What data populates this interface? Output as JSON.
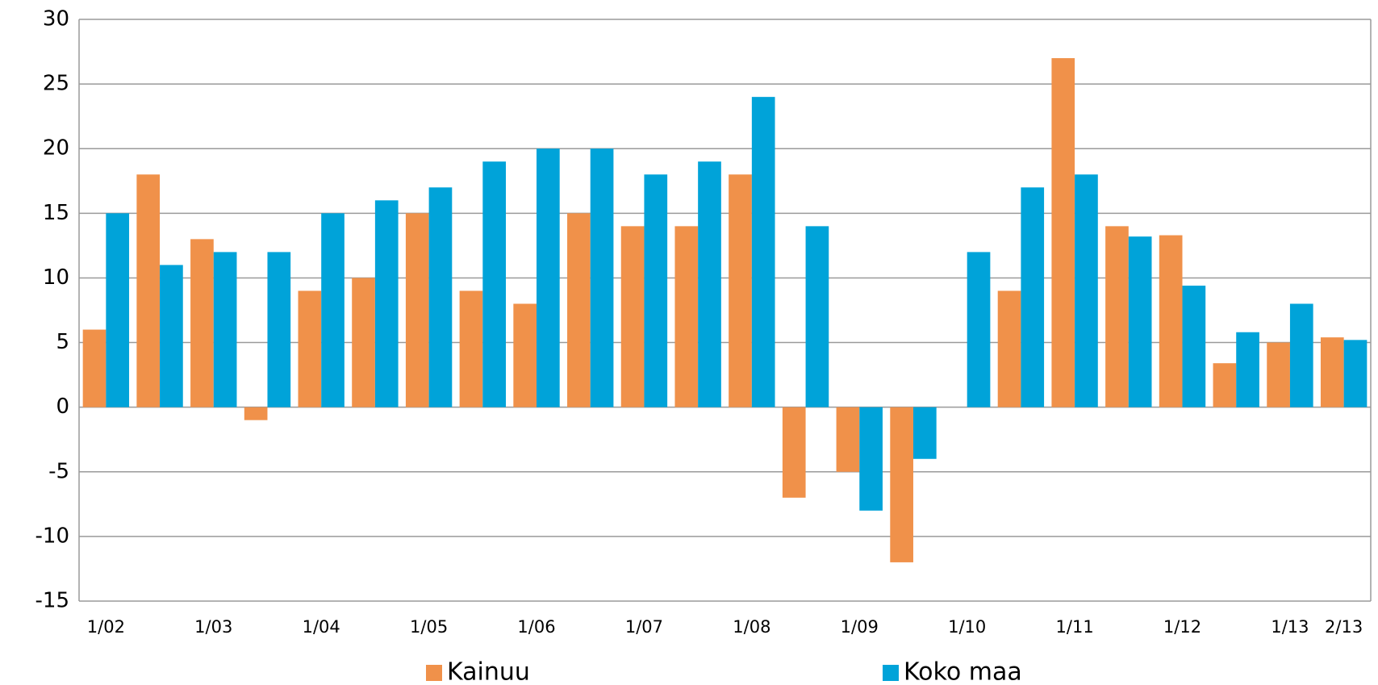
{
  "chart_data": {
    "type": "bar",
    "categories": [
      "1/02",
      null,
      "1/03",
      null,
      "1/04",
      null,
      "1/05",
      null,
      "1/06",
      null,
      "1/07",
      null,
      "1/08",
      null,
      "1/09",
      null,
      "1/10",
      null,
      "1/11",
      null,
      "1/12",
      null,
      "1/13",
      "2/13"
    ],
    "series": [
      {
        "name": "Kainuu",
        "color": "#f0914a",
        "values": [
          6,
          18,
          13,
          -1,
          9,
          10,
          15,
          9,
          8,
          15,
          14,
          14,
          18,
          -7,
          -5,
          -12,
          0,
          9,
          27,
          14,
          13.3,
          3.4,
          5,
          5.4
        ]
      },
      {
        "name": "Koko maa",
        "color": "#00a3d9",
        "values": [
          15,
          11,
          12,
          12,
          15,
          16,
          17,
          19,
          20,
          20,
          18,
          19,
          24,
          14,
          -8,
          -4,
          12,
          17,
          18,
          13.2,
          9.4,
          5.8,
          8,
          5.2
        ]
      }
    ],
    "ylim": [
      -15,
      30
    ],
    "yticks": [
      -15,
      -10,
      -5,
      0,
      5,
      10,
      15,
      20,
      25,
      30
    ],
    "grid": true
  }
}
